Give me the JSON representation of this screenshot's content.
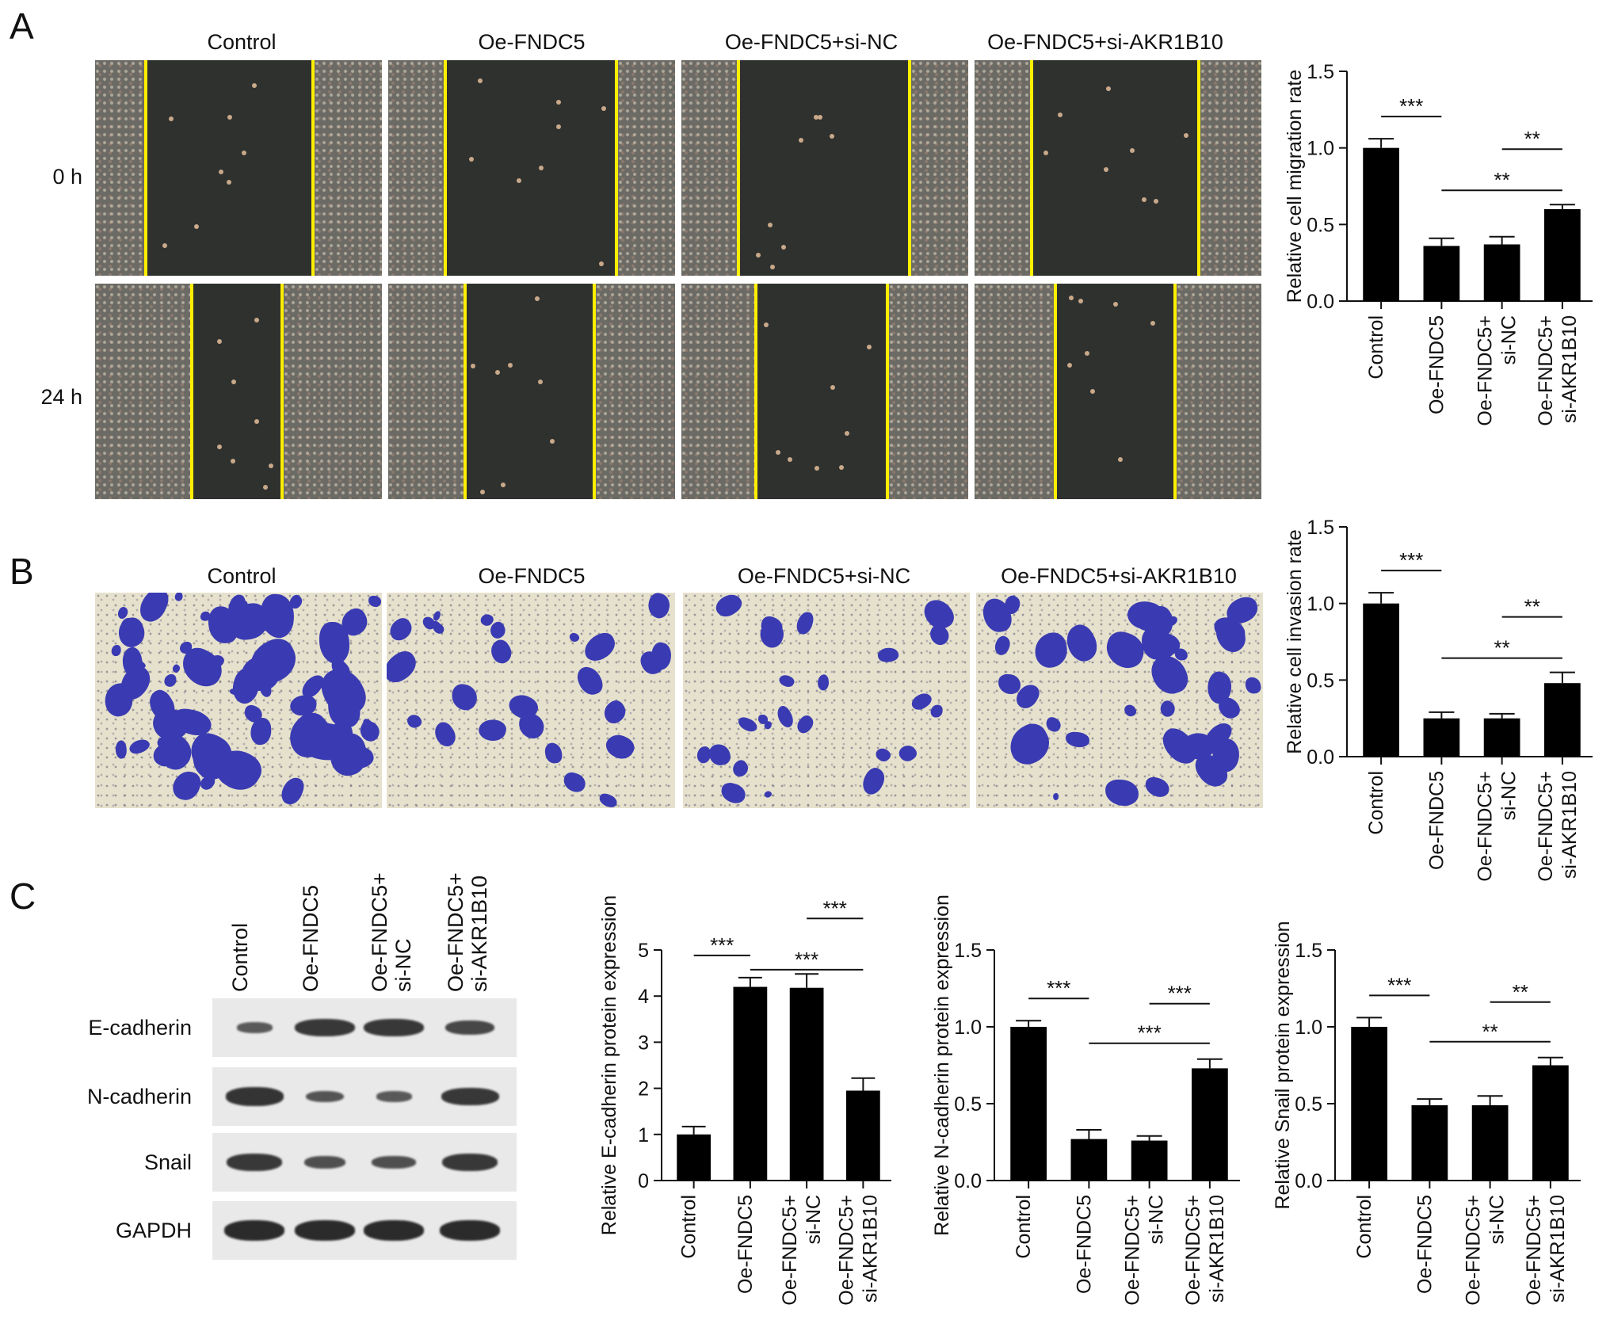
{
  "panels": {
    "a": "A",
    "b": "B",
    "c": "C"
  },
  "groups": [
    "Control",
    "Oe-FNDC5",
    "Oe-FNDC5+si-NC",
    "Oe-FNDC5+si-AKR1B10"
  ],
  "timepoints": [
    "0 h",
    "24 h"
  ],
  "blot": {
    "lanes": [
      [
        "Control"
      ],
      [
        "Oe-FNDC5"
      ],
      [
        "Oe-FNDC5+",
        "si-NC"
      ],
      [
        "Oe-FNDC5+",
        "si-AKR1B10"
      ]
    ],
    "proteins": [
      "E-cadherin",
      "N-cadherin",
      "Snail",
      "GAPDH"
    ]
  },
  "colors": {
    "bar": "#000000",
    "scratch_line": "#ffee00",
    "crystal_violet": "#3a3bb2"
  },
  "chart_data": [
    {
      "type": "bar",
      "categories": [
        [
          "Control"
        ],
        [
          "Oe-FNDC5"
        ],
        [
          "Oe-FNDC5+",
          "si-NC"
        ],
        [
          "Oe-FNDC5+",
          "si-AKR1B10"
        ]
      ],
      "values": [
        1.0,
        0.36,
        0.37,
        0.6
      ],
      "errors": [
        0.06,
        0.05,
        0.05,
        0.03
      ],
      "ylabel": "Relative cell migration rate",
      "ylim": [
        0,
        1.5
      ],
      "yticks": [
        "0.0",
        "0.5",
        "1.0",
        "1.5"
      ],
      "significance": [
        {
          "from": 0,
          "to": 1,
          "label": "***"
        },
        {
          "from": 2,
          "to": 3,
          "label": "**"
        },
        {
          "from": 1,
          "to": 3,
          "label": "**"
        }
      ]
    },
    {
      "type": "bar",
      "categories": [
        [
          "Control"
        ],
        [
          "Oe-FNDC5"
        ],
        [
          "Oe-FNDC5+",
          "si-NC"
        ],
        [
          "Oe-FNDC5+",
          "si-AKR1B10"
        ]
      ],
      "values": [
        1.0,
        0.25,
        0.25,
        0.48
      ],
      "errors": [
        0.07,
        0.04,
        0.03,
        0.07
      ],
      "ylabel": "Relative cell invasion rate",
      "ylim": [
        0,
        1.5
      ],
      "yticks": [
        "0.0",
        "0.5",
        "1.0",
        "1.5"
      ],
      "significance": [
        {
          "from": 0,
          "to": 1,
          "label": "***"
        },
        {
          "from": 2,
          "to": 3,
          "label": "**"
        },
        {
          "from": 1,
          "to": 3,
          "label": "**"
        }
      ]
    },
    {
      "type": "bar",
      "categories": [
        [
          "Control"
        ],
        [
          "Oe-FNDC5"
        ],
        [
          "Oe-FNDC5+",
          "si-NC"
        ],
        [
          "Oe-FNDC5+",
          "si-AKR1B10"
        ]
      ],
      "values": [
        1.0,
        4.2,
        4.18,
        1.95
      ],
      "errors": [
        0.17,
        0.2,
        0.3,
        0.27
      ],
      "ylabel": "Relative E-cadherin protein expression",
      "ylim": [
        0,
        5
      ],
      "yticks": [
        "0",
        "1",
        "2",
        "3",
        "4",
        "5"
      ],
      "significance": [
        {
          "from": 0,
          "to": 1,
          "label": "***"
        },
        {
          "from": 2,
          "to": 3,
          "label": "***"
        },
        {
          "from": 1,
          "to": 3,
          "label": "***"
        }
      ]
    },
    {
      "type": "bar",
      "categories": [
        [
          "Control"
        ],
        [
          "Oe-FNDC5"
        ],
        [
          "Oe-FNDC5+",
          "si-NC"
        ],
        [
          "Oe-FNDC5+",
          "si-AKR1B10"
        ]
      ],
      "values": [
        1.0,
        0.27,
        0.26,
        0.73
      ],
      "errors": [
        0.04,
        0.06,
        0.03,
        0.06
      ],
      "ylabel": "Relative N-cadherin protein expression",
      "ylim": [
        0,
        1.5
      ],
      "yticks": [
        "0.0",
        "0.5",
        "1.0",
        "1.5"
      ],
      "significance": [
        {
          "from": 0,
          "to": 1,
          "label": "***"
        },
        {
          "from": 2,
          "to": 3,
          "label": "***"
        },
        {
          "from": 1,
          "to": 3,
          "label": "***"
        }
      ]
    },
    {
      "type": "bar",
      "categories": [
        [
          "Control"
        ],
        [
          "Oe-FNDC5"
        ],
        [
          "Oe-FNDC5+",
          "si-NC"
        ],
        [
          "Oe-FNDC5+",
          "si-AKR1B10"
        ]
      ],
      "values": [
        1.0,
        0.49,
        0.49,
        0.75
      ],
      "errors": [
        0.06,
        0.04,
        0.06,
        0.05
      ],
      "ylabel": "Relative Snail protein expression",
      "ylim": [
        0,
        1.5
      ],
      "yticks": [
        "0.0",
        "0.5",
        "1.0",
        "1.5"
      ],
      "significance": [
        {
          "from": 0,
          "to": 1,
          "label": "***"
        },
        {
          "from": 2,
          "to": 3,
          "label": "**"
        },
        {
          "from": 1,
          "to": 3,
          "label": "**"
        }
      ]
    }
  ]
}
